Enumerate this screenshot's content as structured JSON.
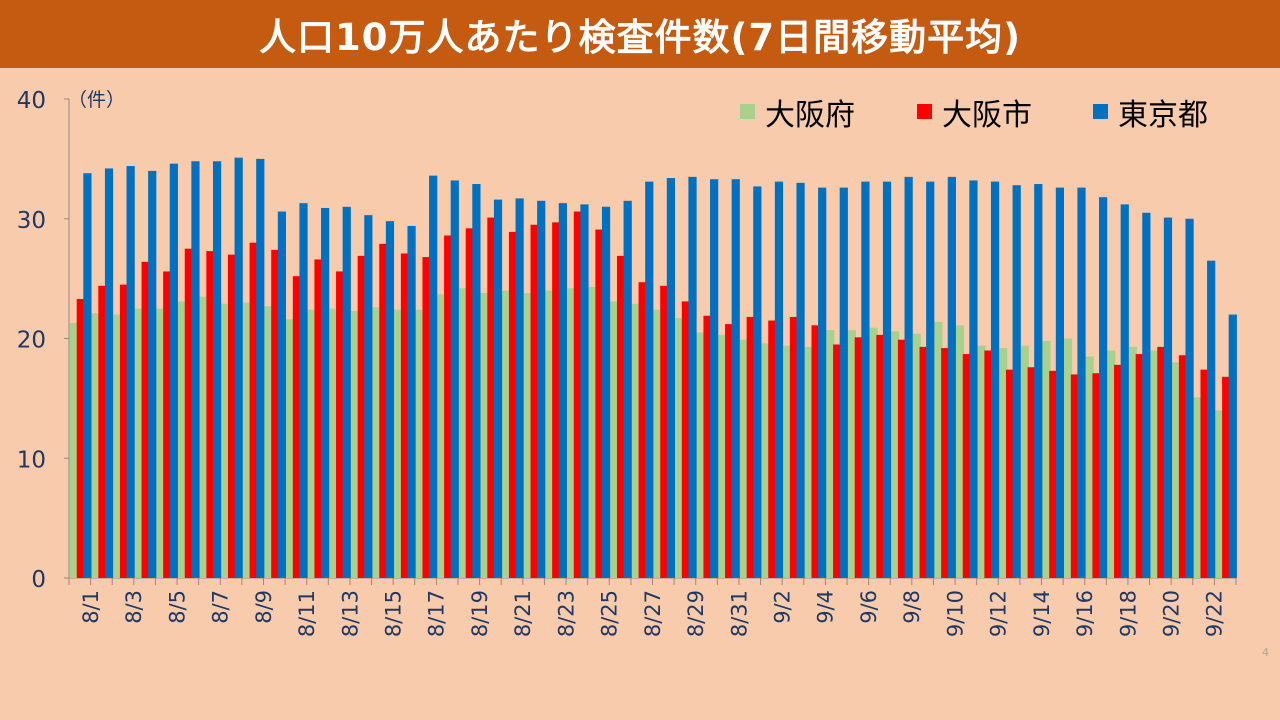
{
  "page": {
    "title": "人口10万人あたり検査件数(7日間移動平均)",
    "page_number": "4"
  },
  "chart_data": {
    "type": "bar",
    "title": "人口10万人あたり検査件数(7日間移動平均)",
    "unit_label": "（件）",
    "ylim": [
      0,
      40
    ],
    "yticks": [
      0,
      10,
      20,
      30,
      40
    ],
    "grid": false,
    "legend_position": "top-right",
    "categories": [
      "8/1",
      "8/2",
      "8/3",
      "8/4",
      "8/5",
      "8/6",
      "8/7",
      "8/8",
      "8/9",
      "8/10",
      "8/11",
      "8/12",
      "8/13",
      "8/14",
      "8/15",
      "8/16",
      "8/17",
      "8/18",
      "8/19",
      "8/20",
      "8/21",
      "8/22",
      "8/23",
      "8/24",
      "8/25",
      "8/26",
      "8/27",
      "8/28",
      "8/29",
      "8/30",
      "8/31",
      "9/1",
      "9/2",
      "9/3",
      "9/4",
      "9/5",
      "9/6",
      "9/7",
      "9/8",
      "9/9",
      "9/10",
      "9/11",
      "9/12",
      "9/13",
      "9/14",
      "9/15",
      "9/16",
      "9/17",
      "9/18",
      "9/19",
      "9/20",
      "9/21",
      "9/22",
      "9/23"
    ],
    "x_tick_labels": [
      "8/1",
      "8/3",
      "8/5",
      "8/7",
      "8/9",
      "8/11",
      "8/13",
      "8/15",
      "8/17",
      "8/19",
      "8/21",
      "8/23",
      "8/25",
      "8/27",
      "8/29",
      "8/31",
      "9/2",
      "9/4",
      "9/6",
      "9/8",
      "9/10",
      "9/12",
      "9/14",
      "9/16",
      "9/18",
      "9/20",
      "9/22"
    ],
    "series": [
      {
        "name": "大阪府",
        "color": "#a9d18e",
        "values": [
          21.3,
          22.1,
          22.0,
          22.5,
          22.5,
          23.1,
          23.5,
          22.9,
          23.0,
          22.7,
          21.6,
          22.4,
          22.5,
          22.3,
          22.6,
          22.4,
          22.4,
          23.7,
          24.2,
          23.8,
          24.0,
          23.8,
          24.0,
          24.2,
          24.3,
          23.1,
          22.9,
          22.4,
          21.7,
          20.5,
          20.3,
          19.9,
          19.6,
          19.4,
          19.3,
          20.7,
          20.7,
          20.9,
          20.6,
          20.4,
          21.4,
          21.1,
          19.4,
          19.2,
          19.4,
          19.8,
          20.0,
          18.5,
          19.0,
          19.3,
          19.0,
          18.0,
          15.1,
          14.0
        ]
      },
      {
        "name": "大阪市",
        "color": "#ff0000",
        "values": [
          23.3,
          24.4,
          24.5,
          26.4,
          25.6,
          27.5,
          27.3,
          27.0,
          28.0,
          27.4,
          25.2,
          26.6,
          25.6,
          26.9,
          27.9,
          27.1,
          26.8,
          28.6,
          29.2,
          30.1,
          28.9,
          29.5,
          29.7,
          30.6,
          29.1,
          26.9,
          24.7,
          24.4,
          23.1,
          21.9,
          21.2,
          21.8,
          21.5,
          21.8,
          21.1,
          19.5,
          20.1,
          20.3,
          19.9,
          19.3,
          19.2,
          18.7,
          19.0,
          17.4,
          17.6,
          17.3,
          17.0,
          17.1,
          17.8,
          18.7,
          19.3,
          18.6,
          17.4,
          16.8
        ]
      },
      {
        "name": "東京都",
        "color": "#0070c0",
        "values": [
          33.8,
          34.2,
          34.4,
          34.0,
          34.6,
          34.8,
          34.8,
          35.1,
          35.0,
          30.6,
          31.3,
          30.9,
          31.0,
          30.3,
          29.8,
          29.4,
          33.6,
          33.2,
          32.9,
          31.6,
          31.7,
          31.5,
          31.3,
          31.2,
          31.0,
          31.5,
          33.1,
          33.4,
          33.5,
          33.3,
          33.3,
          32.7,
          33.1,
          33.0,
          32.6,
          32.6,
          33.1,
          33.1,
          33.5,
          33.1,
          33.5,
          33.2,
          33.1,
          32.8,
          32.9,
          32.6,
          32.6,
          31.8,
          31.2,
          30.5,
          30.1,
          30.0,
          26.5,
          22.0
        ]
      }
    ]
  }
}
